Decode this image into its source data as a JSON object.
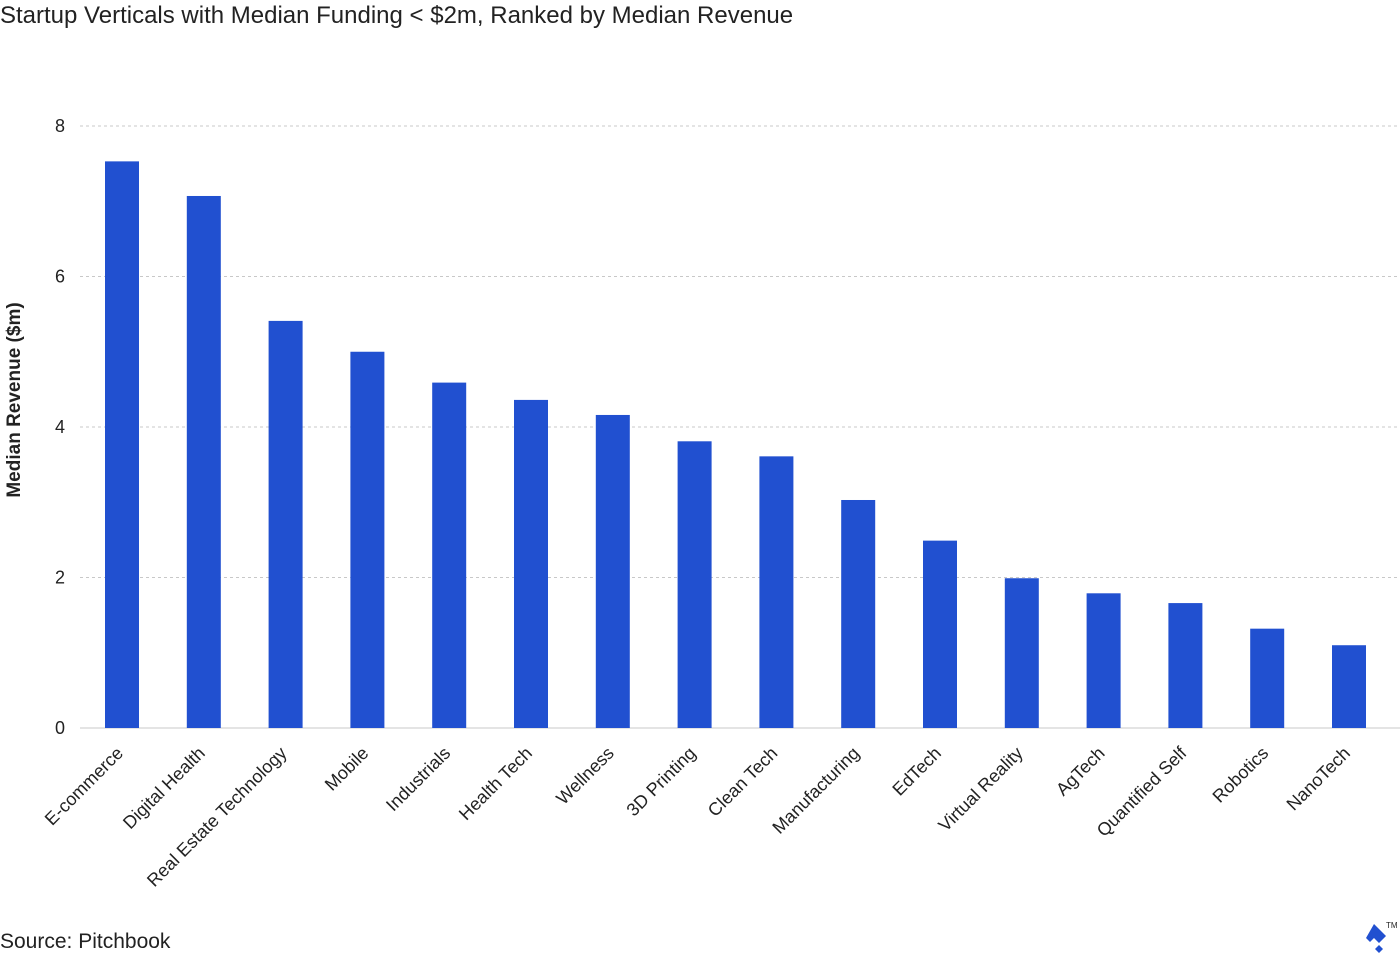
{
  "title": "Startup Verticals with Median Funding < $2m, Ranked by Median Revenue",
  "source": "Source: Pitchbook",
  "logo": {
    "icon": "toptal-logo-icon",
    "text": "TM"
  },
  "colors": {
    "bar": "#2150D0",
    "grid": "#c8c8c8",
    "text": "#222222"
  },
  "chart_data": {
    "type": "bar",
    "title": "Startup Verticals with Median Funding < $2m, Ranked by Median Revenue",
    "xlabel": "",
    "ylabel": "Median Revenue ($m)",
    "ylim": [
      0,
      8
    ],
    "yticks": [
      0,
      2,
      4,
      6,
      8
    ],
    "grid": true,
    "categories": [
      "E-commerce",
      "Digital Health",
      "Real Estate Technology",
      "Mobile",
      "Industrials",
      "Health Tech",
      "Wellness",
      "3D Printing",
      "Clean Tech",
      "Manufacturing",
      "EdTech",
      "Virtual Reality",
      "AgTech",
      "Quantified Self",
      "Robotics",
      "NanoTech"
    ],
    "values": [
      7.53,
      7.07,
      5.41,
      5.0,
      4.59,
      4.36,
      4.16,
      3.81,
      3.61,
      3.03,
      2.49,
      1.99,
      1.79,
      1.66,
      1.32,
      1.1
    ]
  }
}
